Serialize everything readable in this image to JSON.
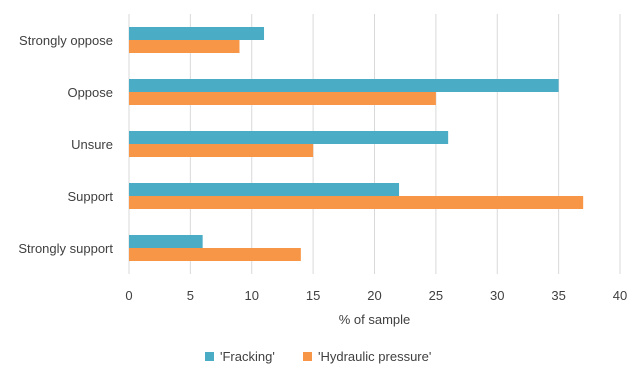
{
  "chart_data": {
    "type": "bar",
    "orientation": "horizontal",
    "categories": [
      "Strongly oppose",
      "Oppose",
      "Unsure",
      "Support",
      "Strongly support"
    ],
    "series": [
      {
        "name": "'Fracking'",
        "color": "#4bacc6",
        "values": [
          11,
          35,
          26,
          22,
          6
        ]
      },
      {
        "name": "'Hydraulic pressure'",
        "color": "#f79646",
        "values": [
          9,
          25,
          15,
          37,
          14
        ]
      }
    ],
    "xlabel": "% of sample",
    "ylabel": "",
    "xlim": [
      0,
      40
    ],
    "xticks": [
      0,
      5,
      10,
      15,
      20,
      25,
      30,
      35,
      40
    ],
    "grid": true,
    "legend_position": "bottom"
  }
}
